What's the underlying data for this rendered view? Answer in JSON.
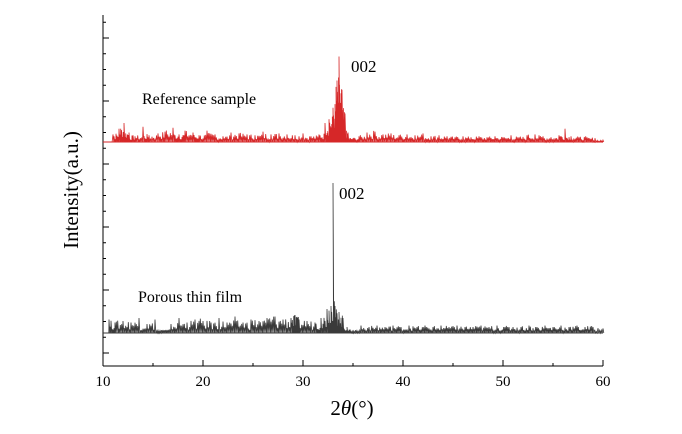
{
  "chart_data": {
    "type": "line",
    "title": "",
    "xlabel_prefix": "2",
    "xlabel_theta": "θ",
    "xlabel_suffix": "(°)",
    "ylabel": "Intensity(a.u.)",
    "xlim": [
      10,
      60
    ],
    "x_ticks": [
      "10",
      "20",
      "30",
      "40",
      "50",
      "60"
    ],
    "grid": false,
    "series": [
      {
        "label": "Reference sample",
        "color": "#d62728",
        "peak_label": "002",
        "peak_x": 33.6,
        "baseline": 0,
        "peak_height": 90,
        "noise_height": 20,
        "peaks": [
          [
            10.0,
            0
          ],
          [
            11.0,
            8
          ],
          [
            11.6,
            14
          ],
          [
            12.1,
            20
          ],
          [
            12.6,
            10
          ],
          [
            13.2,
            6
          ],
          [
            14.0,
            16
          ],
          [
            14.6,
            7
          ],
          [
            15.5,
            9
          ],
          [
            16.2,
            11
          ],
          [
            17.0,
            15
          ],
          [
            17.6,
            8
          ],
          [
            18.2,
            12
          ],
          [
            19.0,
            10
          ],
          [
            19.6,
            7
          ],
          [
            20.4,
            12
          ],
          [
            21.2,
            8
          ],
          [
            22.0,
            6
          ],
          [
            22.8,
            10
          ],
          [
            23.6,
            9
          ],
          [
            24.4,
            8
          ],
          [
            25.2,
            7
          ],
          [
            26.0,
            11
          ],
          [
            26.8,
            8
          ],
          [
            27.6,
            9
          ],
          [
            28.4,
            8
          ],
          [
            29.2,
            7
          ],
          [
            30.0,
            9
          ],
          [
            30.8,
            6
          ],
          [
            31.6,
            8
          ],
          [
            32.2,
            20
          ],
          [
            32.6,
            24
          ],
          [
            33.0,
            36
          ],
          [
            33.3,
            58
          ],
          [
            33.6,
            90
          ],
          [
            33.9,
            55
          ],
          [
            34.2,
            30
          ],
          [
            34.5,
            10
          ],
          [
            35.0,
            4
          ],
          [
            35.6,
            6
          ],
          [
            36.4,
            10
          ],
          [
            37.2,
            11
          ],
          [
            38.0,
            8
          ],
          [
            38.8,
            9
          ],
          [
            39.6,
            7
          ],
          [
            40.4,
            8
          ],
          [
            41.2,
            7
          ],
          [
            42.0,
            9
          ],
          [
            42.8,
            6
          ],
          [
            43.6,
            7
          ],
          [
            44.4,
            6
          ],
          [
            45.2,
            5
          ],
          [
            46.0,
            6
          ],
          [
            46.8,
            5
          ],
          [
            47.6,
            6
          ],
          [
            48.4,
            5
          ],
          [
            49.2,
            6
          ],
          [
            50.0,
            5
          ],
          [
            50.8,
            7
          ],
          [
            51.6,
            5
          ],
          [
            52.4,
            7
          ],
          [
            53.2,
            8
          ],
          [
            54.0,
            6
          ],
          [
            54.8,
            5
          ],
          [
            55.6,
            7
          ],
          [
            56.2,
            14
          ],
          [
            56.8,
            6
          ],
          [
            57.6,
            5
          ],
          [
            58.4,
            5
          ],
          [
            59.2,
            4
          ],
          [
            60.0,
            2
          ]
        ]
      },
      {
        "label": "Porous thin film",
        "color": "#3a3a3a",
        "peak_label": "002",
        "peak_x": 33.0,
        "baseline": 0,
        "peak_height": 100,
        "noise_height": 12,
        "peaks": [
          [
            10.0,
            0
          ],
          [
            10.6,
            9
          ],
          [
            11.2,
            7
          ],
          [
            12.0,
            8
          ],
          [
            12.8,
            7
          ],
          [
            13.6,
            10
          ],
          [
            14.4,
            6
          ],
          [
            15.2,
            9
          ],
          [
            16.0,
            2
          ],
          [
            16.8,
            6
          ],
          [
            17.6,
            10
          ],
          [
            18.4,
            7
          ],
          [
            19.2,
            9
          ],
          [
            20.0,
            8
          ],
          [
            20.8,
            7
          ],
          [
            21.6,
            10
          ],
          [
            22.4,
            7
          ],
          [
            23.2,
            11
          ],
          [
            24.0,
            7
          ],
          [
            24.8,
            9
          ],
          [
            25.6,
            8
          ],
          [
            26.4,
            10
          ],
          [
            27.2,
            11
          ],
          [
            28.0,
            9
          ],
          [
            28.8,
            10
          ],
          [
            29.2,
            12
          ],
          [
            29.6,
            9
          ],
          [
            30.4,
            8
          ],
          [
            31.2,
            7
          ],
          [
            31.8,
            10
          ],
          [
            32.4,
            16
          ],
          [
            32.8,
            18
          ],
          [
            33.0,
            100
          ],
          [
            33.2,
            18
          ],
          [
            33.6,
            14
          ],
          [
            34.0,
            10
          ],
          [
            34.4,
            4
          ],
          [
            35.0,
            2
          ],
          [
            35.8,
            5
          ],
          [
            36.6,
            4
          ],
          [
            37.4,
            5
          ],
          [
            38.2,
            4
          ],
          [
            39.0,
            5
          ],
          [
            39.8,
            4
          ],
          [
            40.6,
            5
          ],
          [
            41.4,
            4
          ],
          [
            42.2,
            5
          ],
          [
            43.0,
            4
          ],
          [
            43.8,
            5
          ],
          [
            44.6,
            4
          ],
          [
            45.4,
            5
          ],
          [
            46.2,
            4
          ],
          [
            47.0,
            4
          ],
          [
            47.8,
            5
          ],
          [
            48.6,
            4
          ],
          [
            49.4,
            5
          ],
          [
            50.2,
            4
          ],
          [
            51.0,
            4
          ],
          [
            51.8,
            4
          ],
          [
            52.6,
            5
          ],
          [
            53.4,
            4
          ],
          [
            54.2,
            5
          ],
          [
            55.0,
            4
          ],
          [
            55.8,
            5
          ],
          [
            56.6,
            4
          ],
          [
            57.4,
            5
          ],
          [
            58.2,
            4
          ],
          [
            59.0,
            4
          ],
          [
            60.0,
            3
          ]
        ]
      }
    ]
  }
}
